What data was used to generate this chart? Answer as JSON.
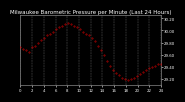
{
  "title": "Milwaukee Barometric Pressure per Minute (Last 24 Hours)",
  "line_color": "#dd0000",
  "background_color": "#000000",
  "plot_bg_color": "#000000",
  "grid_color": "#666666",
  "text_color": "#ffffff",
  "border_color": "#888888",
  "y_values": [
    29.72,
    29.7,
    29.68,
    29.65,
    29.72,
    29.75,
    29.8,
    29.85,
    29.88,
    29.92,
    29.95,
    29.98,
    30.02,
    30.05,
    30.08,
    30.1,
    30.12,
    30.1,
    30.08,
    30.05,
    30.02,
    29.98,
    29.95,
    29.92,
    29.88,
    29.82,
    29.75,
    29.68,
    29.6,
    29.5,
    29.42,
    29.35,
    29.3,
    29.26,
    29.22,
    29.2,
    29.18,
    29.2,
    29.22,
    29.25,
    29.28,
    29.32,
    29.35,
    29.38,
    29.4,
    29.42,
    29.45,
    29.45
  ],
  "ytick_values": [
    29.2,
    29.4,
    29.6,
    29.8,
    30.0,
    30.2
  ],
  "ytick_labels": [
    "29.20",
    "29.40",
    "29.60",
    "29.80",
    "30.00",
    "30.20"
  ],
  "ylim": [
    29.1,
    30.25
  ],
  "xlim_min": 0,
  "xlim_max": 47,
  "num_vgrid": 13,
  "marker_size": 0.7,
  "title_fontsize": 4.0,
  "tick_fontsize": 2.8,
  "grid_linestyle": "--",
  "grid_linewidth": 0.35,
  "spine_linewidth": 0.5
}
